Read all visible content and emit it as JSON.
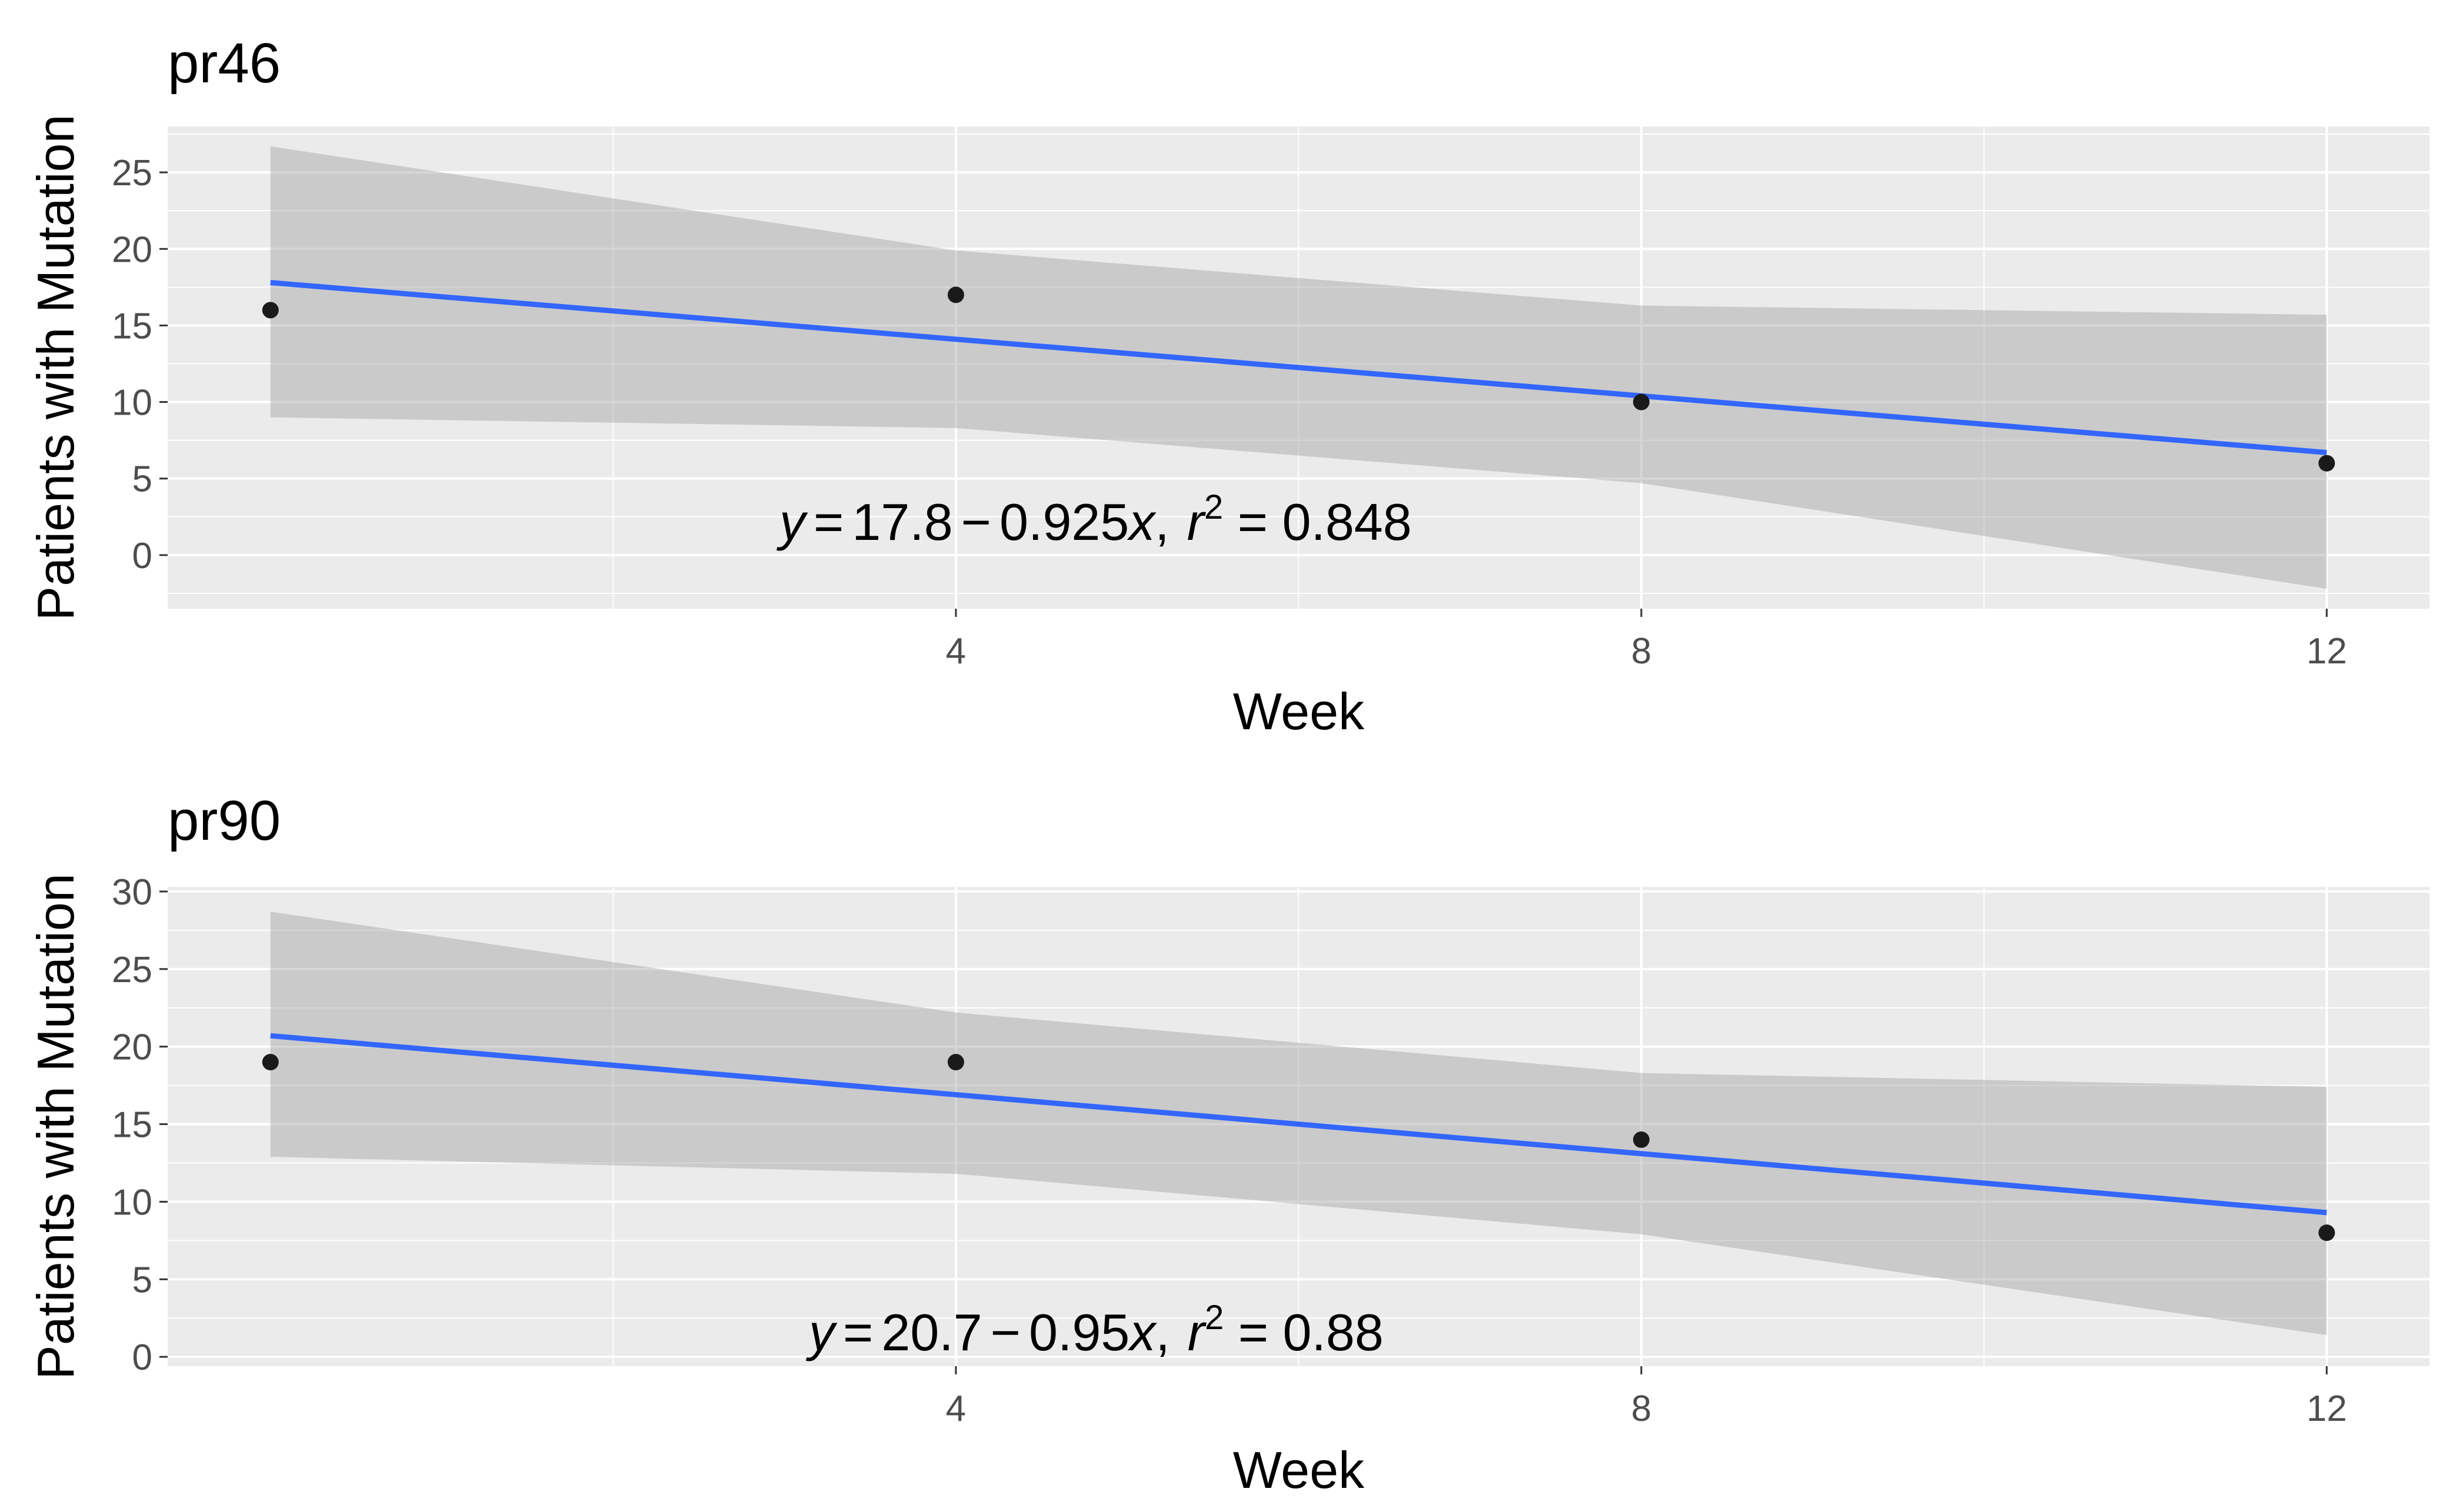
{
  "chart_data": [
    {
      "type": "scatter",
      "title": "pr46",
      "xlabel": "Week",
      "ylabel": "Patients with Mutation",
      "x": [
        0,
        4,
        8,
        12
      ],
      "y": [
        16,
        17,
        10,
        6
      ],
      "fit": {
        "intercept": 17.8,
        "slope": -0.925,
        "r2": 0.848
      },
      "ci_lower": [
        9,
        8.3,
        4.7,
        -2.2
      ],
      "ci_upper": [
        26.7,
        19.9,
        16.3,
        15.7
      ],
      "equation": {
        "y": "y",
        "eq": "=",
        "intercept": "17.8",
        "minus": "−",
        "slope": "0.925",
        "x": "x",
        "sep": ",",
        "r": "r",
        "sup": "2",
        "rhs": " = 0.848"
      },
      "xlim": [
        -0.6,
        12.6
      ],
      "ylim": [
        -3.5,
        28
      ],
      "xticks": [
        4,
        8,
        12
      ],
      "yticks": [
        0,
        5,
        10,
        15,
        20,
        25
      ],
      "colors": {
        "line": "#3366FF",
        "ribbon": "#999999",
        "point": "#1a1a1a",
        "panel": "#EBEBEB"
      }
    },
    {
      "type": "scatter",
      "title": "pr90",
      "xlabel": "Week",
      "ylabel": "Patients with Mutation",
      "x": [
        0,
        4,
        8,
        12
      ],
      "y": [
        19,
        19,
        14,
        8
      ],
      "fit": {
        "intercept": 20.7,
        "slope": -0.95,
        "r2": 0.88
      },
      "ci_lower": [
        12.9,
        11.8,
        7.9,
        1.4
      ],
      "ci_upper": [
        28.7,
        22.2,
        18.3,
        17.4
      ],
      "equation": {
        "y": "y",
        "eq": "=",
        "intercept": "20.7",
        "minus": "−",
        "slope": "0.95",
        "x": "x",
        "sep": ",",
        "r": "r",
        "sup": "2",
        "rhs": " = 0.88"
      },
      "xlim": [
        -0.6,
        12.6
      ],
      "ylim": [
        -0.6,
        30.3
      ],
      "xticks": [
        4,
        8,
        12
      ],
      "yticks": [
        0,
        5,
        10,
        15,
        20,
        25,
        30
      ],
      "colors": {
        "line": "#3366FF",
        "ribbon": "#999999",
        "point": "#1a1a1a",
        "panel": "#EBEBEB"
      }
    }
  ]
}
